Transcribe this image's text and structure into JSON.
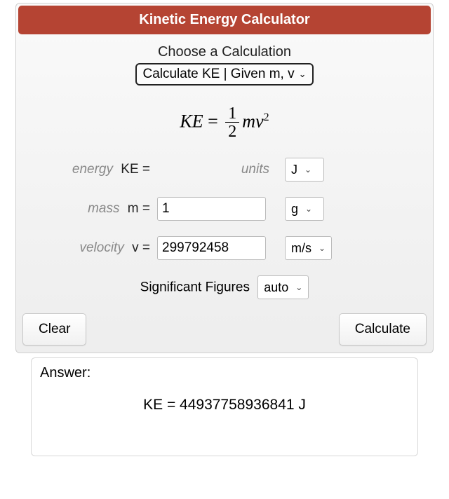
{
  "header": {
    "title": "Kinetic Energy Calculator"
  },
  "choose": {
    "label": "Choose a Calculation",
    "selected": "Calculate KE | Given m, v"
  },
  "formula": {
    "lhs": "KE",
    "eq": "=",
    "frac_num": "1",
    "frac_den": "2",
    "m": "m",
    "v": "v",
    "exp": "2"
  },
  "rows": {
    "energy": {
      "word": "energy",
      "sym": "KE =",
      "units_label": "units",
      "unit": "J"
    },
    "mass": {
      "word": "mass",
      "sym": "m =",
      "value": "1",
      "unit": "g"
    },
    "velocity": {
      "word": "velocity",
      "sym": "v =",
      "value": "299792458",
      "unit": "m/s"
    }
  },
  "sigfig": {
    "label": "Significant Figures",
    "value": "auto"
  },
  "buttons": {
    "clear": "Clear",
    "calc": "Calculate"
  },
  "answer": {
    "label": "Answer:",
    "result": "KE = 44937758936841 J"
  },
  "colors": {
    "header_bg": "#b54433"
  }
}
